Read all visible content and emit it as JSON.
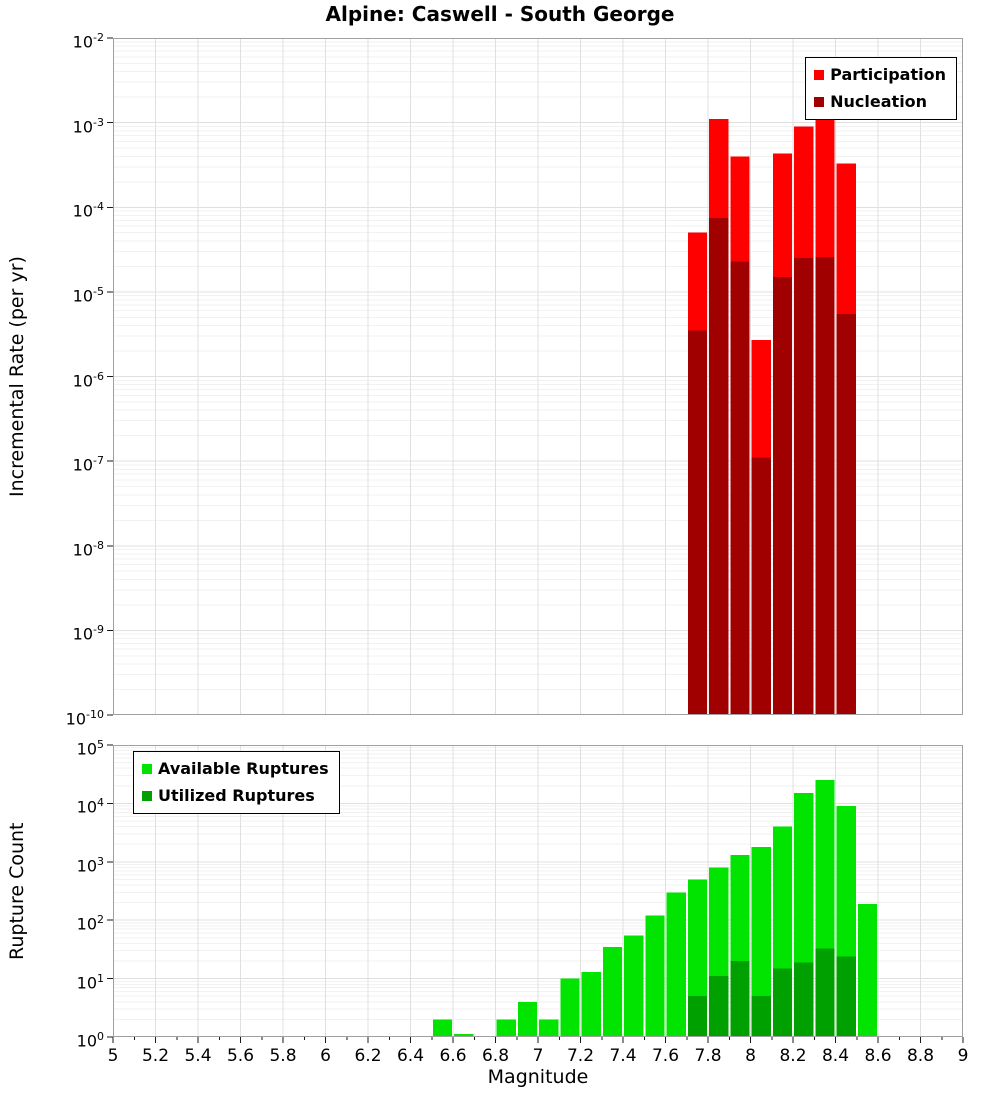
{
  "title": "Alpine: Caswell - South George",
  "x_axis": {
    "label": "Magnitude",
    "min": 5,
    "max": 9,
    "tick_step": 0.2,
    "ticks": [
      "5",
      "5.2",
      "5.4",
      "5.6",
      "5.8",
      "6",
      "6.2",
      "6.4",
      "6.6",
      "6.8",
      "7",
      "7.2",
      "7.4",
      "7.6",
      "7.8",
      "8",
      "8.2",
      "8.4",
      "8.6",
      "8.8",
      "9"
    ]
  },
  "colors": {
    "participation": "#ff0000",
    "nucleation": "#a00000",
    "available": "#00e400",
    "utilized": "#00a000",
    "grid_major": "#e0e0e0",
    "grid_minor": "#f2f2f2",
    "plot_border": "#a0a0a0",
    "tick": "#1a1a1a"
  },
  "chart_data": [
    {
      "type": "bar",
      "name": "incremental-rate",
      "ylabel": "Incremental Rate (per yr)",
      "yscale": "log",
      "ylim": [
        1e-10,
        0.01
      ],
      "y_tick_exponents": [
        -2,
        -3,
        -4,
        -5,
        -6,
        -7,
        -8,
        -9,
        -10
      ],
      "bin_width": 0.1,
      "legend_position": "top-right",
      "legend": [
        {
          "label": "Participation",
          "color_key": "participation"
        },
        {
          "label": "Nucleation",
          "color_key": "nucleation"
        }
      ],
      "series": [
        {
          "name": "Participation",
          "color_key": "participation",
          "x": [
            7.75,
            7.85,
            7.95,
            8.05,
            8.15,
            8.25,
            8.35,
            8.45
          ],
          "values": [
            5e-05,
            0.0011,
            0.0004,
            2.7e-06,
            0.00043,
            0.0009,
            0.0012,
            0.00033
          ]
        },
        {
          "name": "Nucleation",
          "color_key": "nucleation",
          "x": [
            7.75,
            7.85,
            7.95,
            8.05,
            8.15,
            8.25,
            8.35,
            8.45
          ],
          "values": [
            3.5e-06,
            7.5e-05,
            2.3e-05,
            1.1e-07,
            1.5e-05,
            2.5e-05,
            2.6e-05,
            5.5e-06
          ]
        }
      ]
    },
    {
      "type": "bar",
      "name": "rupture-count",
      "ylabel": "Rupture Count",
      "yscale": "log",
      "ylim": [
        1,
        100000.0
      ],
      "y_tick_exponents": [
        5,
        4,
        3,
        2,
        1,
        0
      ],
      "bin_width": 0.1,
      "legend_position": "top-left",
      "legend": [
        {
          "label": "Available Ruptures",
          "color_key": "available"
        },
        {
          "label": "Utilized Ruptures",
          "color_key": "utilized"
        }
      ],
      "series": [
        {
          "name": "Available Ruptures",
          "color_key": "available",
          "x": [
            6.55,
            6.65,
            6.85,
            6.95,
            7.05,
            7.15,
            7.25,
            7.35,
            7.45,
            7.55,
            7.65,
            7.75,
            7.85,
            7.95,
            8.05,
            8.15,
            8.25,
            8.35,
            8.45,
            8.55
          ],
          "values": [
            2,
            1,
            2,
            4,
            2,
            10,
            13,
            35,
            55,
            120,
            300,
            500,
            800,
            1300,
            1800,
            4000,
            15000,
            25000,
            9000,
            190
          ]
        },
        {
          "name": "Utilized Ruptures",
          "color_key": "utilized",
          "x": [
            7.75,
            7.85,
            7.95,
            8.05,
            8.15,
            8.25,
            8.35,
            8.45
          ],
          "values": [
            5,
            11,
            20,
            5,
            15,
            19,
            33,
            24
          ]
        }
      ]
    }
  ]
}
